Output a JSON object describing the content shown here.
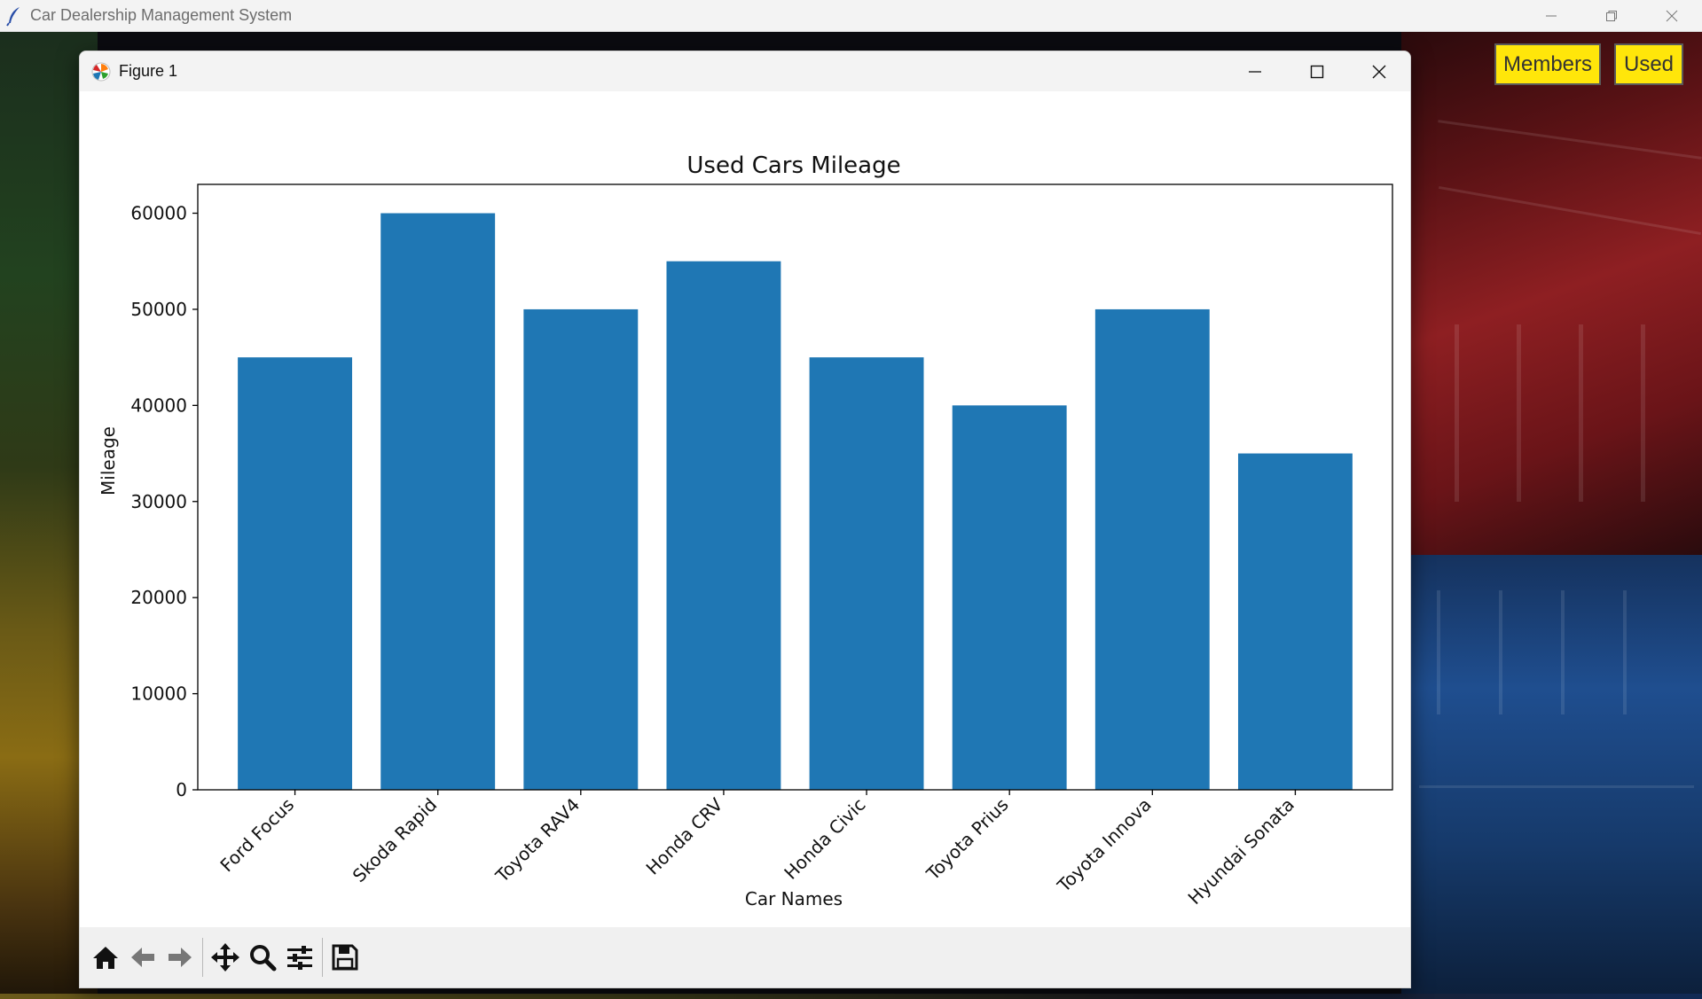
{
  "app": {
    "title": "Car Dealership Management System"
  },
  "top_buttons": {
    "members_label": "Members",
    "used_label": "Used",
    "color": "#ffe60a"
  },
  "figure": {
    "title": "Figure 1"
  },
  "toolbar": {
    "icons": [
      "home-icon",
      "back-icon",
      "forward-icon",
      "pan-icon",
      "zoom-icon",
      "configure-subplots-icon",
      "save-icon"
    ]
  },
  "chart_data": {
    "type": "bar",
    "title": "Used Cars Mileage",
    "xlabel": "Car Names",
    "ylabel": "Mileage",
    "categories": [
      "Ford Focus",
      "Skoda Rapid",
      "Toyota RAV4",
      "Honda CRV",
      "Honda Civic",
      "Toyota Prius",
      "Toyota Innova",
      "Hyundai Sonata"
    ],
    "values": [
      45000,
      60000,
      50000,
      55000,
      45000,
      40000,
      50000,
      35000
    ],
    "yticks": [
      0,
      10000,
      20000,
      30000,
      40000,
      50000,
      60000
    ],
    "ylim": [
      0,
      63000
    ],
    "bar_color": "#1f77b4",
    "grid": false,
    "xtick_rotation": 45
  }
}
